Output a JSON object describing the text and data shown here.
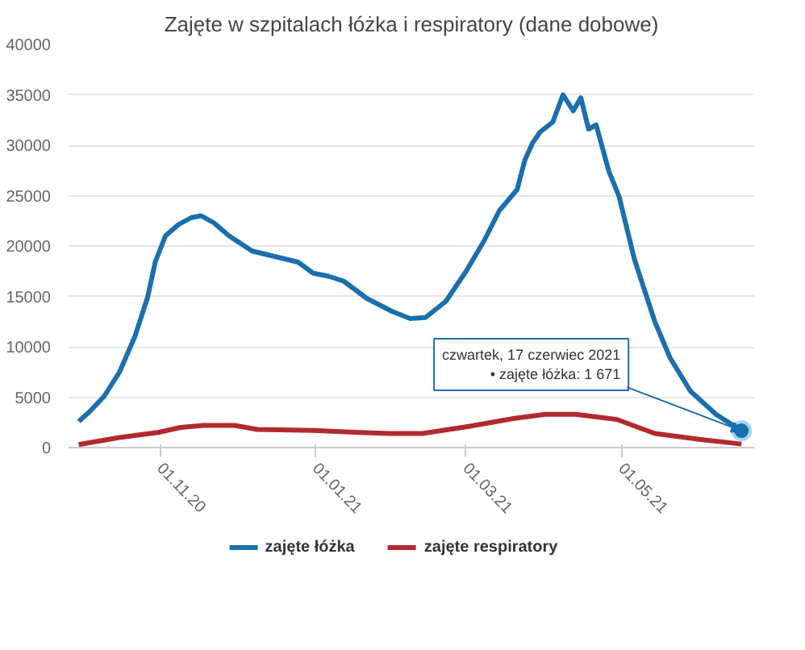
{
  "chart_data": {
    "type": "line",
    "title": "Zajęte w szpitalach łóżka i respiratory (dane dobowe)",
    "xlim": [
      "2020-09-26",
      "2021-06-22"
    ],
    "xticks": [
      {
        "value": "2020-11-01",
        "label": "01.11.20"
      },
      {
        "value": "2021-01-01",
        "label": "01.01.21"
      },
      {
        "value": "2021-03-01",
        "label": "01.03.21"
      },
      {
        "value": "2021-05-01",
        "label": "01.05.21"
      }
    ],
    "ylim": [
      0,
      40000
    ],
    "yticks": [
      0,
      5000,
      10000,
      15000,
      20000,
      25000,
      30000,
      35000,
      40000
    ],
    "grid": "y",
    "legend": "bottom",
    "marker": "none",
    "line_style": "solid",
    "annotations": [
      {
        "text": "czwartek, 17 czerwiec 2021\n• zajęte łóżka: 1 671",
        "x": "2021-06-17",
        "y": 1671
      }
    ],
    "series": [
      {
        "name": "zajęte łóżka",
        "color": "#1a6fae",
        "x": [
          "2020-09-30",
          "2020-10-04",
          "2020-10-10",
          "2020-10-16",
          "2020-10-22",
          "2020-10-27",
          "2020-10-30",
          "2020-11-03",
          "2020-11-08",
          "2020-11-13",
          "2020-11-17",
          "2020-11-22",
          "2020-11-28",
          "2020-12-07",
          "2020-12-25",
          "2020-12-31",
          "2021-01-06",
          "2021-01-12",
          "2021-01-21",
          "2021-01-31",
          "2021-02-07",
          "2021-02-13",
          "2021-02-21",
          "2021-03-01",
          "2021-03-08",
          "2021-03-14",
          "2021-03-21",
          "2021-03-24",
          "2021-03-27",
          "2021-03-30",
          "2021-04-04",
          "2021-04-08",
          "2021-04-12",
          "2021-04-15",
          "2021-04-18",
          "2021-04-21",
          "2021-04-26",
          "2021-04-30",
          "2021-05-06",
          "2021-05-14",
          "2021-05-20",
          "2021-05-28",
          "2021-06-07",
          "2021-06-17"
        ],
        "values": [
          2600,
          3500,
          5100,
          7500,
          11000,
          14900,
          18400,
          21000,
          22100,
          22800,
          23000,
          22300,
          21000,
          19500,
          18400,
          17300,
          17000,
          16500,
          14800,
          13500,
          12800,
          12900,
          14500,
          17500,
          20500,
          23500,
          25600,
          28500,
          30200,
          31300,
          32300,
          35000,
          33400,
          34700,
          31600,
          32000,
          27400,
          24900,
          18700,
          12500,
          8900,
          5600,
          3300,
          1671
        ]
      },
      {
        "name": "zajęte respiratory",
        "color": "#b22a2e",
        "x": [
          "2020-09-30",
          "2020-10-16",
          "2020-10-31",
          "2020-11-09",
          "2020-11-18",
          "2020-11-30",
          "2020-12-09",
          "2020-12-31",
          "2021-01-18",
          "2021-01-30",
          "2021-02-12",
          "2021-03-02",
          "2021-03-20",
          "2021-04-01",
          "2021-04-13",
          "2021-04-29",
          "2021-05-14",
          "2021-06-01",
          "2021-06-17"
        ],
        "values": [
          300,
          1000,
          1500,
          2000,
          2200,
          2200,
          1800,
          1700,
          1500,
          1400,
          1400,
          2100,
          2900,
          3300,
          3300,
          2800,
          1400,
          800,
          350
        ]
      }
    ]
  }
}
